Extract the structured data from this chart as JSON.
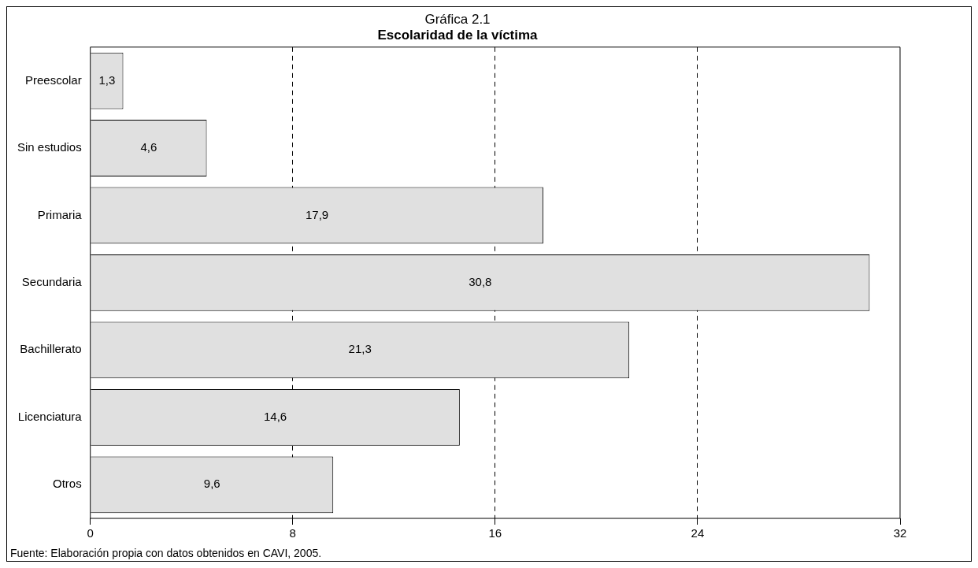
{
  "chart_data": {
    "type": "bar",
    "orientation": "horizontal",
    "title": "Gráfica 2.1",
    "subtitle": "Escolaridad de la víctima",
    "categories": [
      "Preescolar",
      "Sin estudios",
      "Primaria",
      "Secundaria",
      "Bachillerato",
      "Licenciatura",
      "Otros"
    ],
    "values": [
      1.3,
      4.6,
      17.9,
      30.8,
      21.3,
      14.6,
      9.6
    ],
    "value_labels": [
      "1,3",
      "4,6",
      "17,9",
      "30,8",
      "21,3",
      "14,6",
      "9,6"
    ],
    "color": "#e0e0e0",
    "xlim": [
      0,
      32
    ],
    "xticks": [
      0,
      8,
      16,
      24,
      32
    ],
    "grid": "x",
    "line_style": "dashed",
    "legend": false,
    "annotations": [
      "Fuente: Elaboración propia con datos obtenidos en CAVI, 2005."
    ]
  }
}
